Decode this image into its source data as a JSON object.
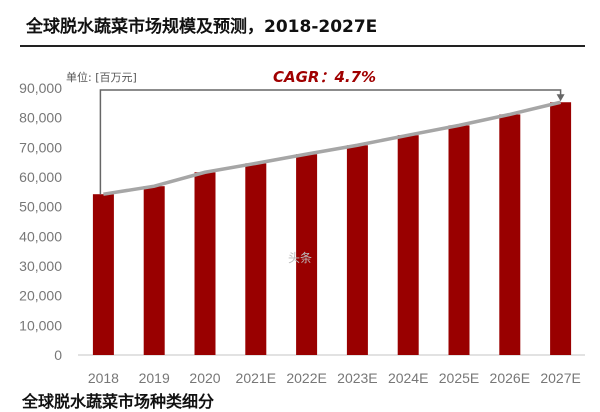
{
  "title": "全球脱水蔬菜市场规模及预测，2018-2027E",
  "bottom_text": "全球脱水蔬菜市场种类细分",
  "watermark": "头条",
  "chart_data": {
    "type": "bar",
    "title": "全球脱水蔬菜市场规模及预测，2018-2027E",
    "unit_label": "单位: [百万元]",
    "annotation": "CAGR：4.7%",
    "categories": [
      "2018",
      "2019",
      "2020",
      "2021E",
      "2022E",
      "2023E",
      "2024E",
      "2025E",
      "2026E",
      "2027E"
    ],
    "values": [
      54200,
      56900,
      61600,
      64600,
      67700,
      70700,
      74100,
      77400,
      81100,
      85200
    ],
    "yticks": [
      "0",
      "10,000",
      "20,000",
      "30,000",
      "40,000",
      "50,000",
      "60,000",
      "70,000",
      "80,000",
      "90,000"
    ],
    "ylim": [
      0,
      90000
    ],
    "grid": false,
    "trend_line": true,
    "colors": {
      "bar": "#990000",
      "trend": "#a6a6a6",
      "annotation": "#a00000",
      "arrow": "#666666"
    }
  }
}
